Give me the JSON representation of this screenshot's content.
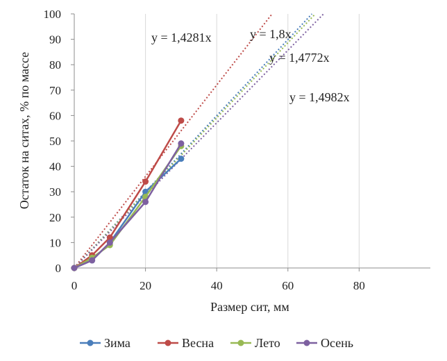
{
  "chart_data": {
    "type": "scatter",
    "title": "",
    "xlabel": "Размер сит, мм",
    "ylabel": "Остаток на ситах, % по массе",
    "xlim": [
      0,
      100
    ],
    "ylim": [
      0,
      100
    ],
    "x_ticks": [
      0,
      20,
      40,
      60,
      80
    ],
    "x_tick_labels": [
      "0",
      "20",
      "40",
      "60",
      "80"
    ],
    "y_ticks": [
      0,
      10,
      20,
      30,
      40,
      50,
      60,
      70,
      80,
      90,
      100
    ],
    "y_tick_labels": [
      "0",
      "10",
      "20",
      "30",
      "40",
      "50",
      "60",
      "70",
      "80",
      "90",
      "100"
    ],
    "grid": "vertical",
    "legend_position": "bottom",
    "series": [
      {
        "name": "Зима",
        "color": "#4a7ebb",
        "x": [
          0,
          5,
          10,
          20,
          30
        ],
        "y": [
          0,
          3,
          10,
          30,
          43
        ],
        "trend_slope": 1.4982,
        "trend_label": "y = 1,4982x"
      },
      {
        "name": "Весна",
        "color": "#be4b48",
        "x": [
          0,
          5,
          10,
          20,
          30
        ],
        "y": [
          0,
          5,
          12,
          34,
          58
        ],
        "trend_slope": 1.8,
        "trend_label": "y = 1,8x"
      },
      {
        "name": "Лето",
        "color": "#98b954",
        "x": [
          0,
          5,
          10,
          20,
          30
        ],
        "y": [
          0,
          4,
          9,
          28,
          48
        ],
        "trend_slope": 1.4772,
        "trend_label": "y = 1,4772x"
      },
      {
        "name": "Осень",
        "color": "#7d60a0",
        "x": [
          0,
          5,
          10,
          20,
          30
        ],
        "y": [
          0,
          3,
          10,
          26,
          49
        ],
        "trend_slope": 1.4281,
        "trend_label": "y = 1,4281x"
      }
    ]
  }
}
